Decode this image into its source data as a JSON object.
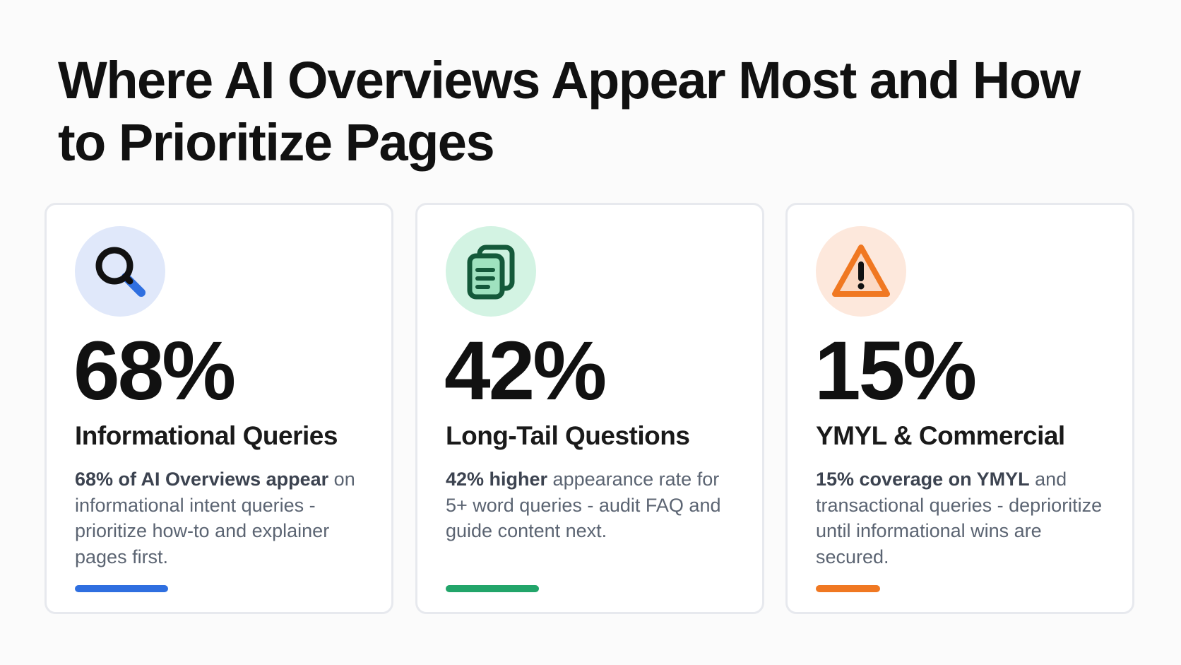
{
  "title": "Where AI Overviews Appear Most and How to Prioritize Pages",
  "cards": [
    {
      "icon": "search-icon",
      "accent": "#2f6fe0",
      "icon_bg": "#e0e8fa",
      "stat": "68%",
      "heading": "Informational Queries",
      "desc_lead": "68% of AI Overviews appear",
      "desc_rest": " on informational intent queries - prioritize how-to and explainer pages first.",
      "bar_fraction": 0.32
    },
    {
      "icon": "documents-icon",
      "accent": "#22a56a",
      "icon_bg": "#d3f3e3",
      "stat": "42%",
      "heading": "Long-Tail Questions",
      "desc_lead": "42% higher",
      "desc_rest": " appearance rate for 5+ word queries - audit FAQ and guide content next.",
      "bar_fraction": 0.32
    },
    {
      "icon": "warning-icon",
      "accent": "#f07822",
      "icon_bg": "#fde8dc",
      "stat": "15%",
      "heading": "YMYL & Commercial",
      "desc_lead": "15% coverage on YMYL",
      "desc_rest": " and transactional queries - deprioritize until informational wins are secured.",
      "bar_fraction": 0.22
    }
  ]
}
